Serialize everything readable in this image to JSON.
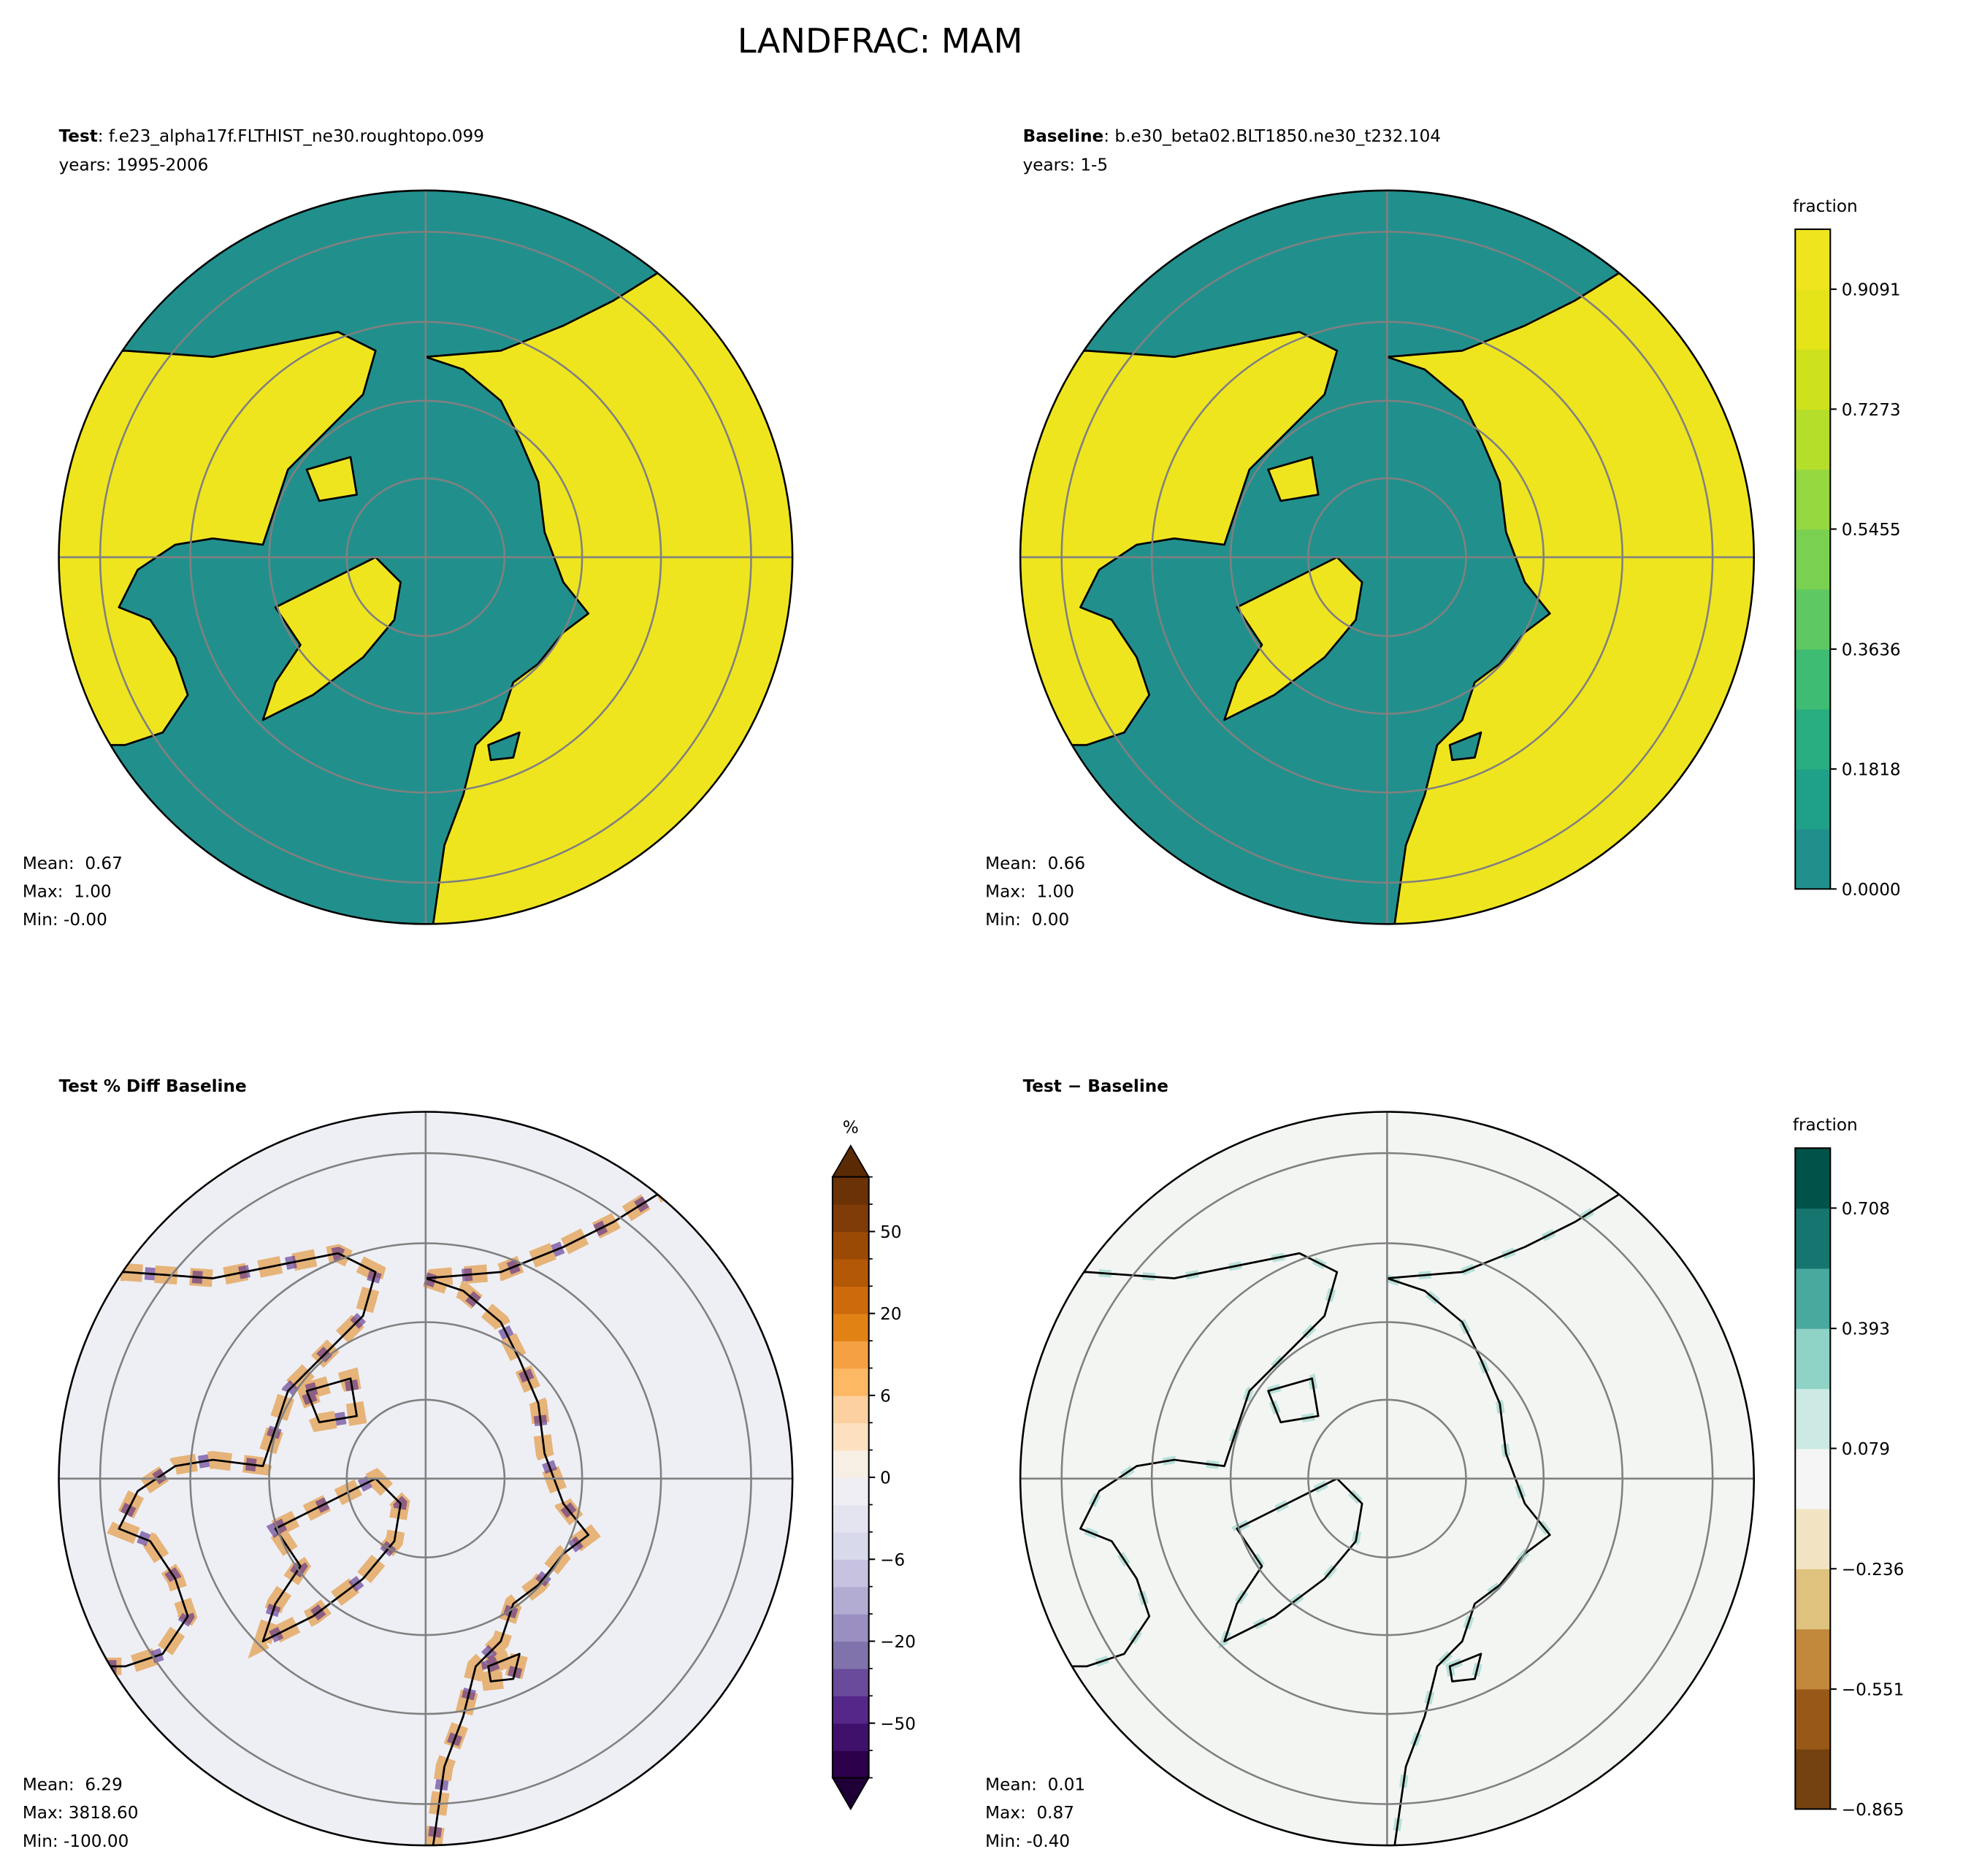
{
  "title": "LANDFRAC: MAM",
  "panels": [
    {
      "label": "Test",
      "text": ": f.e23_alpha17f.FLTHIST_ne30.roughtopo.099",
      "subtitle": "years: 1995-2006",
      "stats": [
        "Mean:  0.67",
        "Max:  1.00",
        "Min: -0.00"
      ]
    },
    {
      "label": "Baseline",
      "text": ": b.e30_beta02.BLT1850.ne30_t232.104",
      "subtitle": "years: 1-5",
      "stats": [
        "Mean:  0.66",
        "Max:  1.00",
        "Min:  0.00"
      ]
    },
    {
      "label": "Test % Diff Baseline",
      "stats": [
        "Mean:  6.29",
        "Max: 3818.60",
        "Min: -100.00"
      ]
    },
    {
      "label": "Test − Baseline",
      "stats": [
        "Mean:  0.01",
        "Max:  0.87",
        "Min: -0.40"
      ]
    }
  ],
  "colorbars": [
    {
      "label": "fraction",
      "ylim": [
        0,
        1
      ],
      "ticks": [
        {
          "value": 0,
          "label": "0.0000"
        },
        0.1818,
        0.3636,
        0.5455,
        0.7273,
        0.9091
      ],
      "colors": [
        "#21908d",
        "#1fa088",
        "#28ae80",
        "#3fbc73",
        "#5ec962",
        "#7ad151",
        "#95d840",
        "#b5de2b",
        "#cde11d",
        "#e4e419",
        "#efe51f"
      ]
    },
    {
      "label": "%",
      "boundaries": [
        -100,
        -75,
        -50,
        -40,
        -30,
        -20,
        -15,
        -10,
        -6,
        -4,
        -2,
        0,
        2,
        4,
        6,
        10,
        15,
        20,
        30,
        40,
        50,
        75,
        100
      ],
      "ticks": [
        {
          "value": -50,
          "label": "−50"
        },
        {
          "value": -20,
          "label": "−20"
        },
        {
          "value": -6,
          "label": "−6"
        },
        0,
        6,
        20,
        50
      ],
      "colors": [
        "#2d004b",
        "#40116b",
        "#542788",
        "#6a4a9b",
        "#8073ac",
        "#9a8fc0",
        "#b2abd2",
        "#c6c2e0",
        "#d8daeb",
        "#e4e4f0",
        "#eeeef4",
        "#f7efe4",
        "#fde0c0",
        "#fdd0a0",
        "#fdb863",
        "#f4a043",
        "#e08214",
        "#cc6a0c",
        "#b35806",
        "#9b4a05",
        "#7f3b08",
        "#6b3206"
      ],
      "extend": "both",
      "under_color": "#1f0036",
      "over_color": "#5a2a05"
    },
    {
      "label": "fraction",
      "ylim": [
        -0.865,
        0.865
      ],
      "ticks": [
        {
          "value": -0.865,
          "label": "−0.865"
        },
        {
          "value": -0.551,
          "label": "−0.551"
        },
        {
          "value": -0.236,
          "label": "−0.236"
        },
        0.079,
        0.393,
        0.708
      ],
      "colors": [
        "#744210",
        "#985817",
        "#c2883c",
        "#dfc27d",
        "#f2e4c2",
        "#f4f5f4",
        "#cce9e3",
        "#8fd2c6",
        "#4aa99e",
        "#16766f",
        "#01534a"
      ]
    }
  ]
}
